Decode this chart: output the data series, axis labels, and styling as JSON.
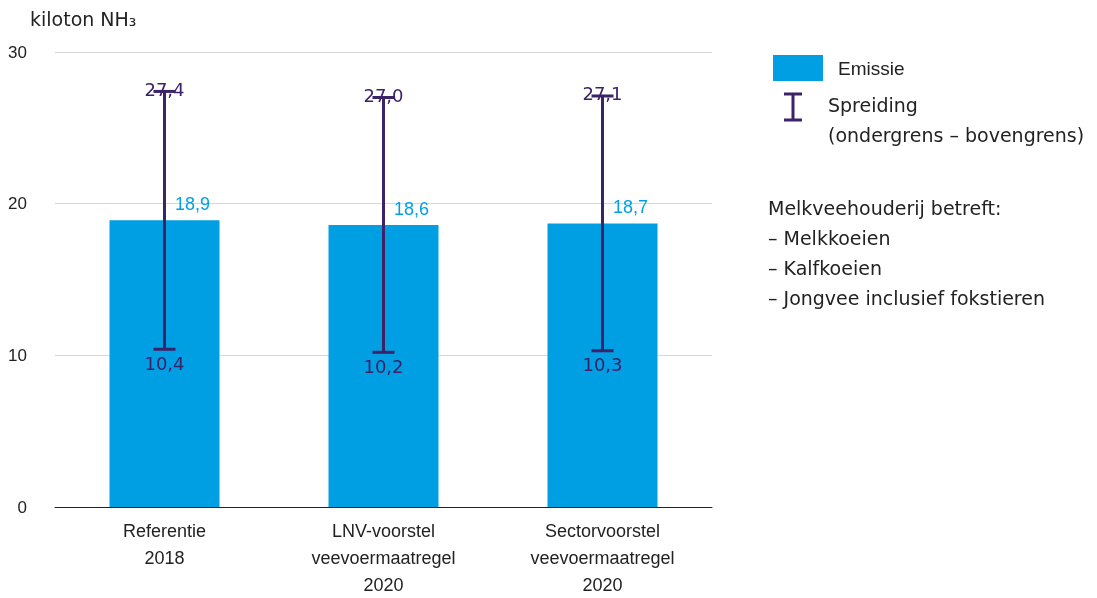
{
  "chart_data": {
    "type": "bar",
    "ylabel": "kiloton NH₃",
    "categories": [
      "Referentie\n2018",
      "LNV-voorstel\nveevoermaatregel\n2020",
      "Sectorvoorstel\nveevoermaatregel\n2020"
    ],
    "series": [
      {
        "name": "Emissie",
        "color": "#009fe3",
        "values": [
          18.9,
          18.6,
          18.7
        ],
        "value_labels": [
          "18,9",
          "18,6",
          "18,7"
        ],
        "errors": [
          [
            10.4,
            27.4
          ],
          [
            10.2,
            27.0
          ],
          [
            10.3,
            27.1
          ]
        ]
      }
    ],
    "ylim": [
      0,
      30
    ],
    "yticks": [
      0,
      10,
      20,
      30
    ],
    "grid": "y",
    "legend": "right",
    "annotations": [
      {
        "text": "27,4",
        "x": "Referentie\n2018",
        "y": 27.4
      },
      {
        "text": "10,4",
        "x": "Referentie\n2018",
        "y": 10.4
      },
      {
        "text": "27,0",
        "x": "LNV-voorstel\nveevoermaatregel\n2020",
        "y": 27.0
      },
      {
        "text": "10,2",
        "x": "LNV-voorstel\nveevoermaatregel\n2020",
        "y": 10.2
      },
      {
        "text": "27,1",
        "x": "Sectorvoorstel\nveevoermaatregel\n2020",
        "y": 27.1
      },
      {
        "text": "10,3",
        "x": "Sectorvoorstel\nveevoermaatregel\n2020",
        "y": 10.3
      },
      "Spreiding\n(ondergrens – bovengrens)",
      "Melkveehouderij betreft:\n– Melkkoeien\n– Kalfkoeien\n– Jongvee inclusief fokstieren"
    ]
  }
}
